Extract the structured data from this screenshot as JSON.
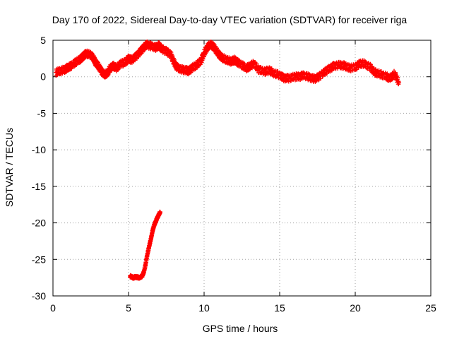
{
  "chart_data": {
    "type": "scatter",
    "title": "Day 170 of 2022, Sidereal Day-to-day VTEC variation (SDTVAR) for receiver riga",
    "xlabel": "GPS time / hours",
    "ylabel": "SDTVAR / TECUs",
    "xlim": [
      0,
      25
    ],
    "ylim": [
      -30,
      5
    ],
    "xticks": [
      0,
      5,
      10,
      15,
      20,
      25
    ],
    "yticks": [
      5,
      0,
      -5,
      -10,
      -15,
      -20,
      -25,
      -30
    ],
    "grid": true,
    "marker": "+",
    "color": "#ff0000",
    "series": [
      {
        "name": "main",
        "x": [
          0.2,
          0.5,
          0.8,
          1.0,
          1.2,
          1.5,
          1.8,
          2.0,
          2.2,
          2.5,
          2.7,
          2.8,
          3.0,
          3.2,
          3.4,
          3.6,
          3.8,
          4.0,
          4.2,
          4.5,
          4.8,
          5.0,
          5.2,
          5.5,
          5.8,
          6.0,
          6.2,
          6.5,
          6.8,
          7.0,
          7.2,
          7.5,
          7.8,
          8.0,
          8.2,
          8.5,
          8.8,
          9.0,
          9.2,
          9.5,
          9.8,
          10.0,
          10.2,
          10.4,
          10.6,
          10.8,
          11.0,
          11.2,
          11.5,
          11.8,
          12.0,
          12.2,
          12.5,
          12.8,
          13.0,
          13.3,
          13.6,
          14.0,
          14.3,
          14.6,
          15.0,
          15.3,
          15.6,
          16.0,
          16.3,
          16.6,
          17.0,
          17.3,
          17.6,
          18.0,
          18.3,
          18.6,
          19.0,
          19.3,
          19.6,
          20.0,
          20.3,
          20.6,
          21.0,
          21.3,
          21.6,
          22.0,
          22.3,
          22.6,
          22.9
        ],
        "y": [
          0.6,
          0.8,
          1.0,
          1.3,
          1.5,
          2.0,
          2.4,
          2.8,
          3.2,
          3.0,
          2.5,
          2.0,
          1.5,
          0.8,
          0.3,
          0.5,
          1.2,
          1.5,
          1.2,
          1.8,
          2.0,
          2.5,
          2.3,
          2.8,
          3.5,
          4.0,
          4.4,
          4.2,
          4.0,
          4.3,
          3.8,
          3.5,
          3.0,
          2.0,
          1.3,
          1.0,
          0.9,
          0.8,
          1.2,
          1.6,
          2.2,
          3.2,
          4.0,
          4.4,
          4.2,
          3.6,
          3.0,
          2.6,
          2.3,
          2.1,
          2.3,
          2.0,
          1.6,
          1.2,
          1.4,
          1.8,
          1.0,
          0.7,
          0.9,
          0.5,
          0.2,
          -0.2,
          -0.2,
          0.0,
          0.0,
          0.2,
          -0.1,
          -0.3,
          0.0,
          0.7,
          1.1,
          1.5,
          1.6,
          1.5,
          1.2,
          1.3,
          1.8,
          1.8,
          1.3,
          0.6,
          0.4,
          0.1,
          -0.2,
          0.4,
          -0.8
        ]
      },
      {
        "name": "low",
        "x": [
          5.1,
          5.3,
          5.5,
          5.7,
          5.9,
          6.0,
          6.1,
          6.2,
          6.3,
          6.4,
          6.5,
          6.6,
          6.7,
          6.8,
          6.9,
          7.0,
          7.1
        ],
        "y": [
          -27.3,
          -27.5,
          -27.4,
          -27.5,
          -27.3,
          -26.8,
          -26.0,
          -24.8,
          -23.8,
          -22.9,
          -22.0,
          -21.0,
          -20.3,
          -19.8,
          -19.3,
          -18.9,
          -18.5
        ]
      }
    ]
  }
}
